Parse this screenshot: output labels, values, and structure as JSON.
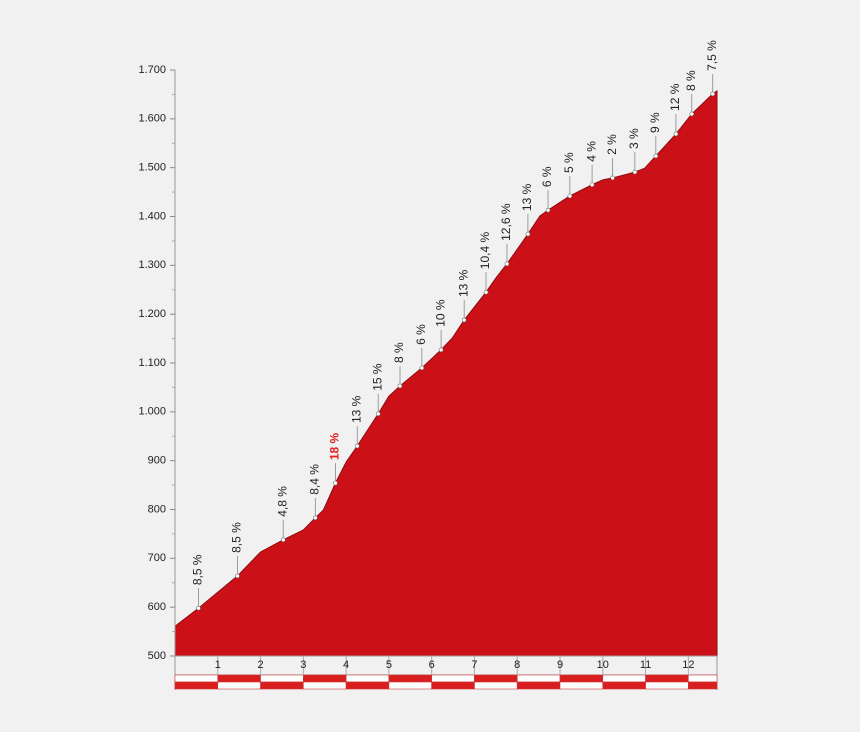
{
  "chart_data": {
    "type": "area",
    "color": "#cc1018",
    "x": [
      0,
      0.55,
      1.46,
      2.0,
      2.53,
      3.0,
      3.28,
      3.47,
      3.75,
      4.0,
      4.26,
      4.75,
      5.0,
      5.26,
      5.77,
      6.22,
      6.48,
      6.76,
      7.02,
      7.27,
      7.5,
      7.76,
      8.25,
      8.53,
      8.72,
      9.23,
      9.75,
      10.0,
      10.23,
      10.75,
      10.98,
      11.24,
      11.45,
      11.71,
      12.08,
      12.57,
      12.67
    ],
    "values": [
      561,
      598,
      664,
      713,
      738,
      758,
      783,
      799,
      854,
      897,
      930,
      996,
      1032,
      1053,
      1090,
      1127,
      1151,
      1188,
      1217,
      1245,
      1274,
      1303,
      1364,
      1401,
      1413,
      1442,
      1465,
      1475,
      1479,
      1491,
      1499,
      1524,
      1544,
      1569,
      1610,
      1651,
      1657
    ],
    "xlim": [
      0,
      12.67
    ],
    "xticks": [
      1,
      2,
      3,
      4,
      5,
      6,
      7,
      8,
      9,
      10,
      11,
      12
    ],
    "ylim": [
      500,
      1700
    ],
    "yticks": [
      500,
      600,
      700,
      800,
      900,
      {
        "value": 1000,
        "label": "1.000"
      },
      {
        "value": 1100,
        "label": "1.100"
      },
      {
        "value": 1200,
        "label": "1.200"
      },
      {
        "value": 1300,
        "label": "1.300"
      },
      {
        "value": 1400,
        "label": "1.400"
      },
      {
        "value": 1500,
        "label": "1.500"
      },
      {
        "value": 1600,
        "label": "1.600"
      },
      {
        "value": 1700,
        "label": "1.700"
      }
    ],
    "yminorticks": [
      550,
      650,
      750,
      850,
      950,
      1050,
      1150,
      1250,
      1350,
      1450,
      1550,
      1650
    ],
    "annotations": [
      {
        "x": 0.55,
        "y": 598,
        "label": "8,5 %"
      },
      {
        "x": 1.46,
        "y": 664,
        "label": "8,5 %"
      },
      {
        "x": 2.53,
        "y": 738,
        "label": "4,8 %"
      },
      {
        "x": 3.28,
        "y": 783,
        "label": "8,4 %"
      },
      {
        "x": 3.75,
        "y": 854,
        "label": "18 %",
        "color": "#e02020"
      },
      {
        "x": 4.26,
        "y": 930,
        "label": "13 %"
      },
      {
        "x": 4.75,
        "y": 996,
        "label": "15 %"
      },
      {
        "x": 5.26,
        "y": 1053,
        "label": "8 %"
      },
      {
        "x": 5.77,
        "y": 1090,
        "label": "6 %"
      },
      {
        "x": 6.22,
        "y": 1127,
        "label": "10 %"
      },
      {
        "x": 6.76,
        "y": 1188,
        "label": "13 %"
      },
      {
        "x": 7.27,
        "y": 1245,
        "label": "10,4 %"
      },
      {
        "x": 7.76,
        "y": 1303,
        "label": "12,6 %"
      },
      {
        "x": 8.25,
        "y": 1364,
        "label": "13 %"
      },
      {
        "x": 8.72,
        "y": 1413,
        "label": "6 %"
      },
      {
        "x": 9.23,
        "y": 1442,
        "label": "5 %"
      },
      {
        "x": 9.75,
        "y": 1465,
        "label": "4 %"
      },
      {
        "x": 10.23,
        "y": 1479,
        "label": "2 %"
      },
      {
        "x": 10.75,
        "y": 1491,
        "label": "3 %"
      },
      {
        "x": 11.24,
        "y": 1524,
        "label": "9 %"
      },
      {
        "x": 11.71,
        "y": 1569,
        "label": "12 %"
      },
      {
        "x": 12.08,
        "y": 1610,
        "label": "8 %"
      },
      {
        "x": 12.57,
        "y": 1651,
        "label": "7,5 %"
      }
    ]
  }
}
